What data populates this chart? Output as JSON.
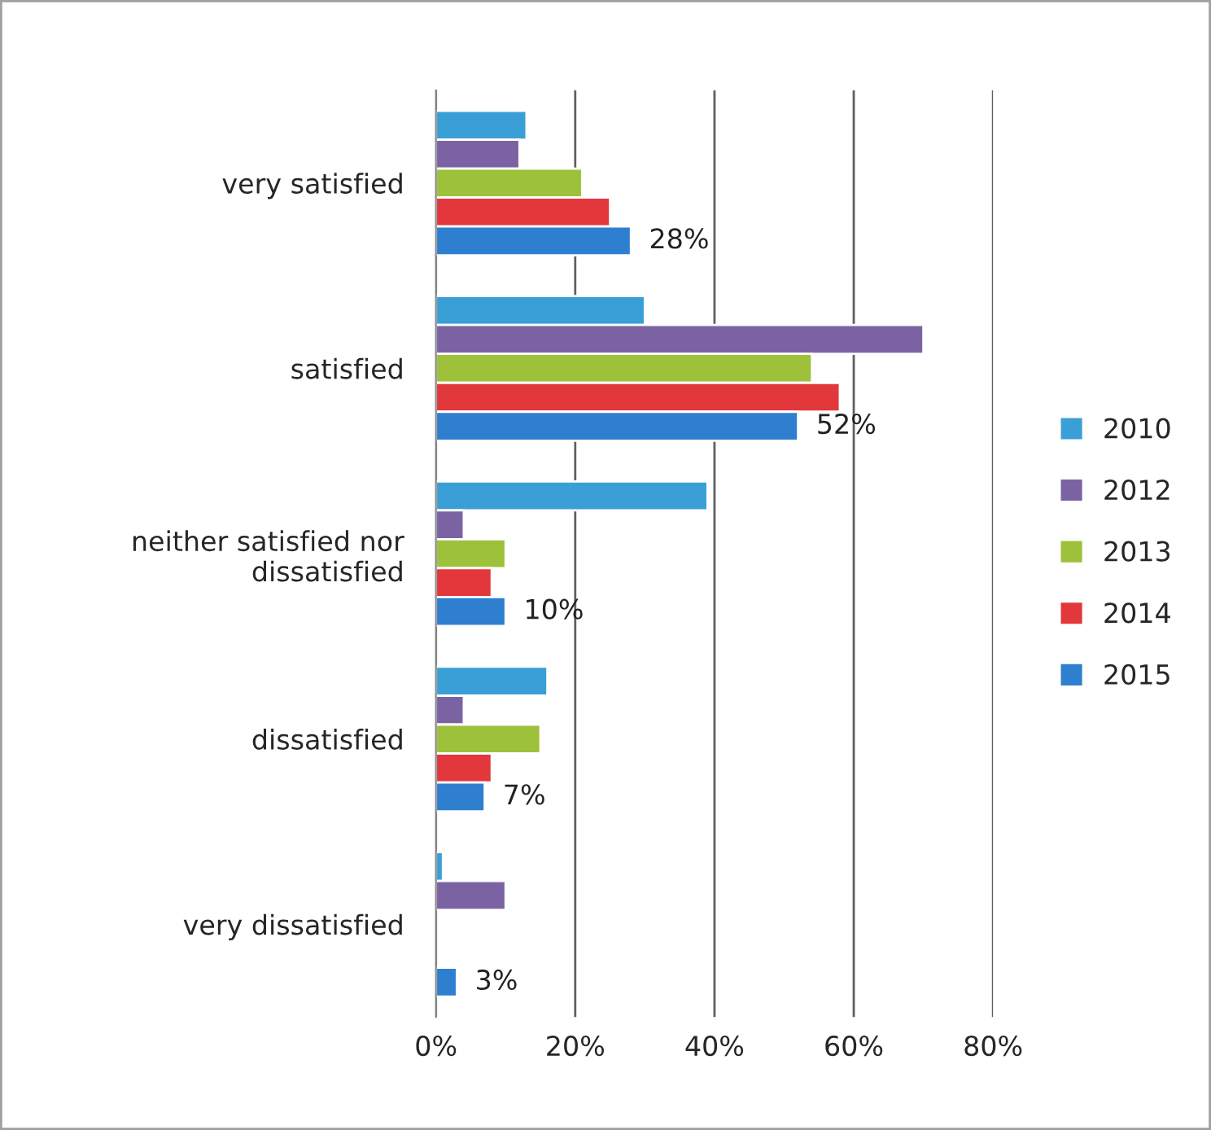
{
  "chart_data": {
    "type": "bar",
    "orientation": "horizontal",
    "categories": [
      "very satisfied",
      "satisfied",
      "neither satisfied nor\ndissatisfied",
      "dissatisfied",
      "very dissatisfied"
    ],
    "series": [
      {
        "name": "2010",
        "color": "#3a9fd6",
        "values": [
          13,
          30,
          39,
          16,
          1
        ]
      },
      {
        "name": "2012",
        "color": "#7b63a3",
        "values": [
          12,
          70,
          4,
          4,
          10
        ]
      },
      {
        "name": "2013",
        "color": "#9dc13a",
        "values": [
          21,
          54,
          10,
          15,
          null
        ]
      },
      {
        "name": "2014",
        "color": "#e2373b",
        "values": [
          25,
          58,
          8,
          8,
          null
        ]
      },
      {
        "name": "2015",
        "color": "#2f7fd0",
        "values": [
          28,
          52,
          10,
          7,
          3
        ],
        "value_labels": [
          "28%",
          "52%",
          "10%",
          "7%",
          "3%"
        ]
      }
    ],
    "xlim": [
      0,
      80
    ],
    "xticks": [
      {
        "value": 0,
        "label": "0%"
      },
      {
        "value": 20,
        "label": "20%"
      },
      {
        "value": 40,
        "label": "40%"
      },
      {
        "value": 60,
        "label": "60%"
      },
      {
        "value": 80,
        "label": "80%"
      }
    ],
    "grid": "x",
    "legend": "right"
  }
}
